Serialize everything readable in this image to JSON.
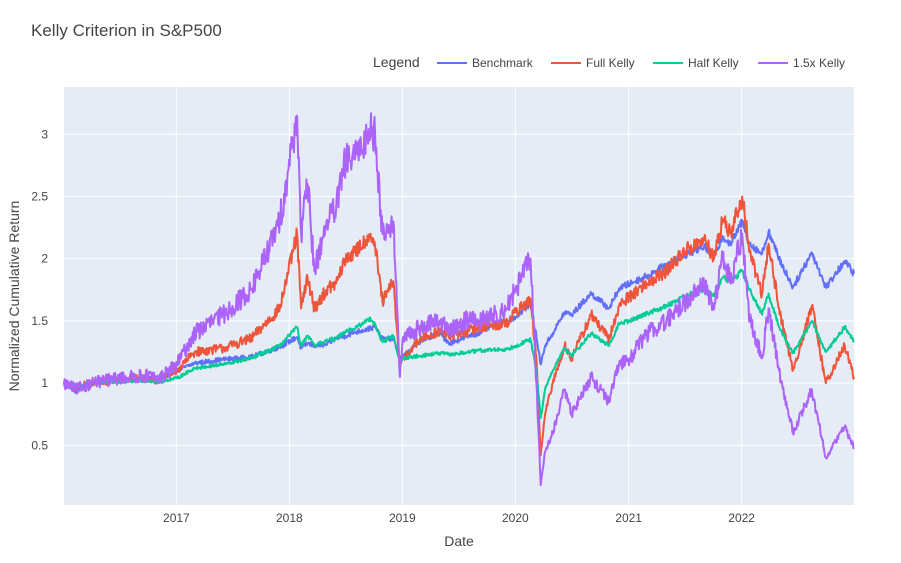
{
  "chart_data": {
    "type": "line",
    "title": "Kelly Criterion in S&P500",
    "xlabel": "Date",
    "ylabel": "Normalized Cumulative Return",
    "xlim": [
      "2016-01-04",
      "2022-12-30"
    ],
    "ylim": [
      0.02,
      3.38
    ],
    "x_ticks": [
      "2017",
      "2018",
      "2019",
      "2020",
      "2021",
      "2022"
    ],
    "y_ticks": [
      0.5,
      1,
      1.5,
      2,
      2.5,
      3
    ],
    "grid": true,
    "plot_background": "#e5ecf6",
    "legend": {
      "title": "Legend",
      "placement": "top-right",
      "orientation": "horizontal"
    },
    "x": [
      "2016-01-04",
      "2016-02-11",
      "2016-04-01",
      "2016-07-01",
      "2016-10-03",
      "2016-11-04",
      "2017-01-03",
      "2017-03-01",
      "2017-06-01",
      "2017-09-01",
      "2017-12-01",
      "2018-01-26",
      "2018-02-08",
      "2018-03-01",
      "2018-03-23",
      "2018-05-01",
      "2018-06-01",
      "2018-07-02",
      "2018-08-01",
      "2018-09-20",
      "2018-10-05",
      "2018-10-29",
      "2018-12-03",
      "2018-12-24",
      "2019-01-02",
      "2019-03-01",
      "2019-05-01",
      "2019-06-03",
      "2019-08-05",
      "2019-09-03",
      "2019-11-01",
      "2019-12-02",
      "2020-01-02",
      "2020-02-19",
      "2020-03-09",
      "2020-03-23",
      "2020-04-06",
      "2020-05-01",
      "2020-06-08",
      "2020-07-01",
      "2020-09-02",
      "2020-10-30",
      "2020-12-01",
      "2021-01-04",
      "2021-03-01",
      "2021-05-03",
      "2021-07-01",
      "2021-09-02",
      "2021-10-04",
      "2021-11-01",
      "2021-11-26",
      "2022-01-03",
      "2022-01-27",
      "2022-03-08",
      "2022-03-29",
      "2022-05-02",
      "2022-06-16",
      "2022-08-16",
      "2022-09-30",
      "2022-11-30",
      "2022-12-30"
    ],
    "series": [
      {
        "name": "Benchmark",
        "color": "#636efa",
        "values": [
          1.0,
          0.93,
          1.0,
          1.02,
          1.04,
          1.03,
          1.1,
          1.16,
          1.19,
          1.21,
          1.29,
          1.37,
          1.28,
          1.32,
          1.3,
          1.31,
          1.36,
          1.38,
          1.41,
          1.44,
          1.45,
          1.35,
          1.36,
          1.19,
          1.21,
          1.34,
          1.4,
          1.32,
          1.38,
          1.4,
          1.48,
          1.5,
          1.53,
          1.64,
          1.37,
          1.15,
          1.3,
          1.4,
          1.57,
          1.55,
          1.72,
          1.6,
          1.76,
          1.8,
          1.86,
          1.95,
          2.03,
          2.1,
          2.02,
          2.18,
          2.12,
          2.3,
          2.12,
          2.04,
          2.22,
          2.0,
          1.77,
          2.05,
          1.77,
          1.98,
          1.88
        ]
      },
      {
        "name": "Full Kelly",
        "color": "#ef553b",
        "values": [
          1.0,
          0.96,
          1.0,
          1.03,
          1.04,
          1.02,
          1.1,
          1.25,
          1.28,
          1.36,
          1.6,
          2.2,
          1.6,
          1.85,
          1.6,
          1.75,
          1.8,
          2.0,
          2.05,
          2.2,
          2.1,
          1.65,
          1.82,
          1.1,
          1.2,
          1.35,
          1.42,
          1.38,
          1.42,
          1.45,
          1.47,
          1.48,
          1.57,
          1.67,
          1.2,
          0.42,
          0.75,
          1.0,
          1.3,
          1.2,
          1.55,
          1.35,
          1.62,
          1.7,
          1.8,
          1.9,
          2.06,
          2.15,
          2.0,
          2.32,
          2.2,
          2.5,
          2.05,
          1.72,
          2.12,
          1.6,
          1.1,
          1.62,
          1.0,
          1.3,
          1.05
        ]
      },
      {
        "name": "Half Kelly",
        "color": "#00cc96",
        "values": [
          1.0,
          0.98,
          1.0,
          1.01,
          1.02,
          1.01,
          1.04,
          1.12,
          1.15,
          1.2,
          1.3,
          1.45,
          1.3,
          1.38,
          1.3,
          1.34,
          1.36,
          1.42,
          1.44,
          1.52,
          1.47,
          1.33,
          1.38,
          1.16,
          1.2,
          1.22,
          1.24,
          1.23,
          1.25,
          1.26,
          1.27,
          1.27,
          1.3,
          1.35,
          1.1,
          0.72,
          0.95,
          1.1,
          1.28,
          1.22,
          1.4,
          1.3,
          1.48,
          1.5,
          1.56,
          1.62,
          1.7,
          1.75,
          1.7,
          1.85,
          1.82,
          1.9,
          1.75,
          1.55,
          1.72,
          1.45,
          1.24,
          1.5,
          1.25,
          1.45,
          1.34
        ]
      },
      {
        "name": "1.5x Kelly",
        "color": "#ab63fa",
        "values": [
          1.0,
          0.95,
          1.0,
          1.04,
          1.06,
          1.03,
          1.15,
          1.4,
          1.55,
          1.75,
          2.3,
          3.15,
          2.2,
          2.6,
          1.9,
          2.3,
          2.4,
          2.8,
          2.8,
          3.05,
          3.0,
          2.2,
          2.3,
          1.05,
          1.35,
          1.45,
          1.5,
          1.42,
          1.52,
          1.5,
          1.55,
          1.6,
          1.75,
          2.0,
          1.0,
          0.18,
          0.45,
          0.6,
          0.95,
          0.75,
          1.05,
          0.85,
          1.15,
          1.2,
          1.4,
          1.5,
          1.65,
          1.8,
          1.6,
          2.05,
          1.8,
          2.2,
          1.5,
          1.2,
          1.6,
          1.1,
          0.6,
          0.95,
          0.4,
          0.65,
          0.48
        ]
      }
    ]
  }
}
